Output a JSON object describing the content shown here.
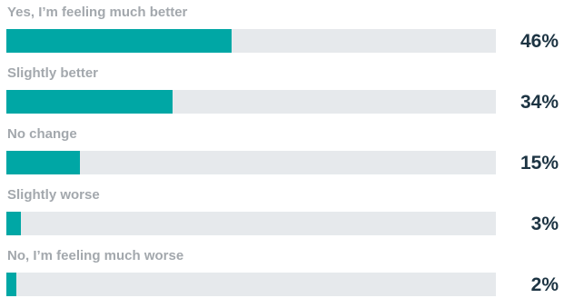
{
  "chart_data": {
    "type": "bar",
    "orientation": "horizontal",
    "categories": [
      "Yes, I’m feeling much better",
      "Slightly better",
      "No change",
      "Slightly worse",
      "No, I’m feeling much worse"
    ],
    "values": [
      46,
      34,
      15,
      3,
      2
    ],
    "value_labels": [
      "46%",
      "34%",
      "15%",
      "3%",
      "2%"
    ],
    "xlim": [
      0,
      100
    ],
    "grid": false,
    "legend": "none"
  },
  "colors": {
    "bar_fill": "#00a7a5",
    "track": "#e6e9ec",
    "label_text": "#a3a8ad",
    "value_text": "#1d3443"
  }
}
